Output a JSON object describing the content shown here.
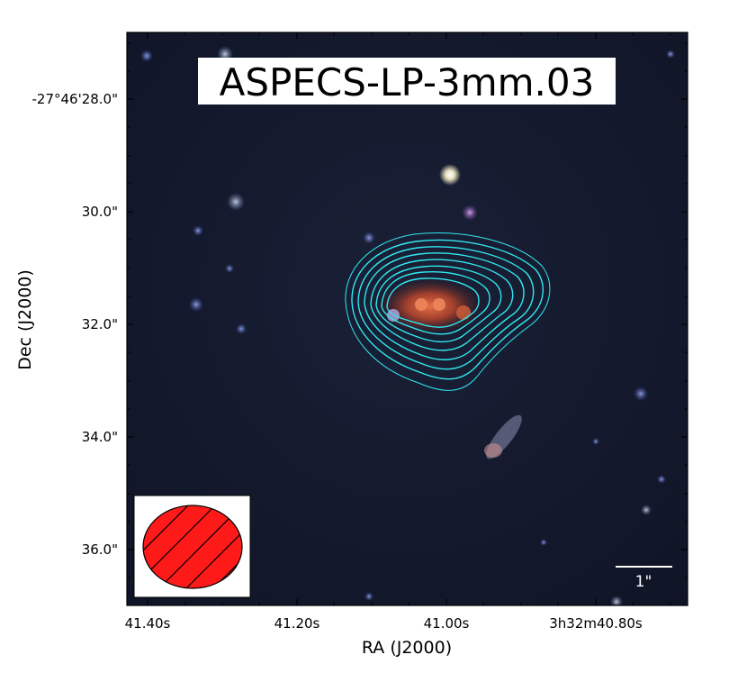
{
  "title": "ASPECS-LP-3mm.03",
  "x_axis": {
    "label": "RA (J2000)",
    "ticks": [
      "41.40s",
      "41.20s",
      "41.00s",
      "3h32m40.80s"
    ]
  },
  "y_axis": {
    "label": "Dec (J2000)",
    "ticks": [
      "-27°46'28.0\"",
      "30.0\"",
      "32.0\"",
      "34.0\"",
      "36.0\""
    ]
  },
  "scale_bar": {
    "label": "1\""
  },
  "colors": {
    "contour": "#30e8f0",
    "beam_fill": "#ff1a1a",
    "sky": "#141a2e",
    "source": "#c8583a"
  },
  "legend": {
    "beam_icon": "hatched-ellipse-icon",
    "position": "bottom-left"
  }
}
